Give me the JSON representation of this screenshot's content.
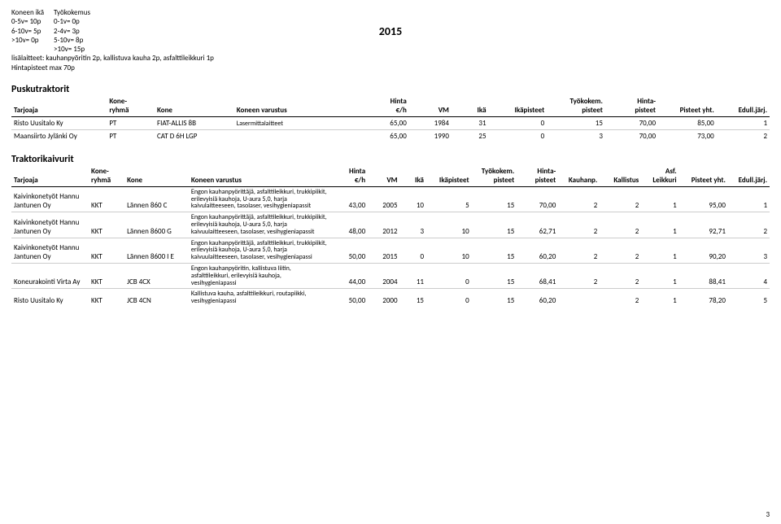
{
  "year": "2015",
  "legend": {
    "col1": {
      "head": "Koneen ikä",
      "lines": [
        "0-5v= 10p",
        "6-10v= 5p",
        ">10v= 0p"
      ]
    },
    "col2": {
      "head": "Työkokemus",
      "lines": [
        "0-1v= 0p",
        "2-4v= 3p",
        "5-10v= 8p",
        ">10v= 15p"
      ]
    },
    "extra1": "lisälaitteet: kauhanpyöritin 2p, kallistuva kauha 2p, asfalttileikkuri 1p",
    "extra2": "Hintapisteet max 70p"
  },
  "section1": {
    "title": "Puskutraktorit",
    "headers": {
      "tarjoaja": "Tarjoaja",
      "koneryhma_top": "Kone-",
      "koneryhma_bot": "ryhmä",
      "kone": "Kone",
      "varustus": "Koneen varustus",
      "hinta_top": "Hinta",
      "hinta_bot": "€/h",
      "vm": "VM",
      "ika": "Ikä",
      "ikapisteet": "Ikäpisteet",
      "tyok_top": "Työkokem.",
      "tyok_bot": "pisteet",
      "hintap_top": "Hinta-",
      "hintap_bot": "pisteet",
      "pisteet_yht": "Pisteet yht.",
      "edull": "Edull.järj."
    },
    "rows": [
      {
        "tarjoaja": "Risto Uusitalo Ky",
        "ryh": "PT",
        "kone": "FIAT-ALLIS 8B",
        "var": "Lasermittalaitteet",
        "hinta": "65,00",
        "vm": "1984",
        "ika": "31",
        "ikap": "0",
        "tyok": "15",
        "hintap": "70,00",
        "pyht": "85,00",
        "edull": "1"
      },
      {
        "tarjoaja": "Maansiirto Jylänki Oy",
        "ryh": "PT",
        "kone": "CAT D 6H LGP",
        "var": "",
        "hinta": "65,00",
        "vm": "1990",
        "ika": "25",
        "ikap": "0",
        "tyok": "3",
        "hintap": "70,00",
        "pyht": "73,00",
        "edull": "2"
      }
    ]
  },
  "section2": {
    "title": "Traktorikaivurit",
    "headers": {
      "tarjoaja": "Tarjoaja",
      "koneryhma_top": "Kone-",
      "koneryhma_bot": "ryhmä",
      "kone": "Kone",
      "varustus": "Koneen varustus",
      "hinta_top": "Hinta",
      "hinta_bot": "€/h",
      "vm": "VM",
      "ika": "Ikä",
      "ikapisteet": "Ikäpisteet",
      "tyok_top": "Työkokem.",
      "tyok_bot": "pisteet",
      "hintap_top": "Hinta-",
      "hintap_bot": "pisteet",
      "kauhanp": "Kauhanp.",
      "kallistus": "Kallistus",
      "asf_top": "Asf.",
      "asf_bot": "Leikkuri",
      "pisteet_yht": "Pisteet yht.",
      "edull": "Edull.järj."
    },
    "rows": [
      {
        "tarjoaja": "Kaivinkonetyöt Hannu Jantunen Oy",
        "ryh": "KKT",
        "kone": "Lännen 860 C",
        "var": "Engon kauhanpyörittäjä, asfalttileikkuri, trukkipiikit, erilevyisiä kauhoja, U-aura 5,0, harja kaivulaitteeseen, tasolaser, vesihygieniapassit",
        "hinta": "43,00",
        "vm": "2005",
        "ika": "10",
        "ikap": "5",
        "tyok": "15",
        "hintap": "70,00",
        "kauh": "2",
        "kall": "2",
        "asf": "1",
        "pyht": "95,00",
        "edull": "1"
      },
      {
        "tarjoaja": "Kaivinkonetyöt Hannu Jantunen Oy",
        "ryh": "KKT",
        "kone": "Lännen 8600 G",
        "var": "Engon kauhanpyörittäjä, asfalttileikkuri, trukkipiikit, erilevyisiä kauhoja, U-aura 5,0, harja kaivuulaitteeseen, tasolaser, vesihygieniapassit",
        "hinta": "48,00",
        "vm": "2012",
        "ika": "3",
        "ikap": "10",
        "tyok": "15",
        "hintap": "62,71",
        "kauh": "2",
        "kall": "2",
        "asf": "1",
        "pyht": "92,71",
        "edull": "2"
      },
      {
        "tarjoaja": "Kaivinkonetyöt Hannu Jantunen Oy",
        "ryh": "KKT",
        "kone": "Lännen 8600 I E",
        "var": "Engon kauhanpyörittäjä, asfalttileikkuri, trukkipiikit, erilevyisiä kauhoja, U-aura 5,0, harja kaivuulaitteeseen, tasolaser, vesihygieniapassi",
        "hinta": "50,00",
        "vm": "2015",
        "ika": "0",
        "ikap": "10",
        "tyok": "15",
        "hintap": "60,20",
        "kauh": "2",
        "kall": "2",
        "asf": "1",
        "pyht": "90,20",
        "edull": "3"
      },
      {
        "tarjoaja": "Koneurakointi Virta Ay",
        "ryh": "KKT",
        "kone": "JCB 4CX",
        "var": "Engon kauhanpyöritin, kallistuva liitin, asfalttileikkuri, erilevyisiä kauhoja, vesihygieniapassi",
        "hinta": "44,00",
        "vm": "2004",
        "ika": "11",
        "ikap": "0",
        "tyok": "15",
        "hintap": "68,41",
        "kauh": "2",
        "kall": "2",
        "asf": "1",
        "pyht": "88,41",
        "edull": "4"
      },
      {
        "tarjoaja": "Risto Uusitalo Ky",
        "ryh": "KKT",
        "kone": "JCB 4CN",
        "var": "Kallistuva kauha, asfalttileikkuri, routapiikki, vesihygieniapassi",
        "hinta": "50,00",
        "vm": "2000",
        "ika": "15",
        "ikap": "0",
        "tyok": "15",
        "hintap": "60,20",
        "kauh": "",
        "kall": "2",
        "asf": "1",
        "pyht": "78,20",
        "edull": "5"
      }
    ]
  },
  "page_number": "3"
}
